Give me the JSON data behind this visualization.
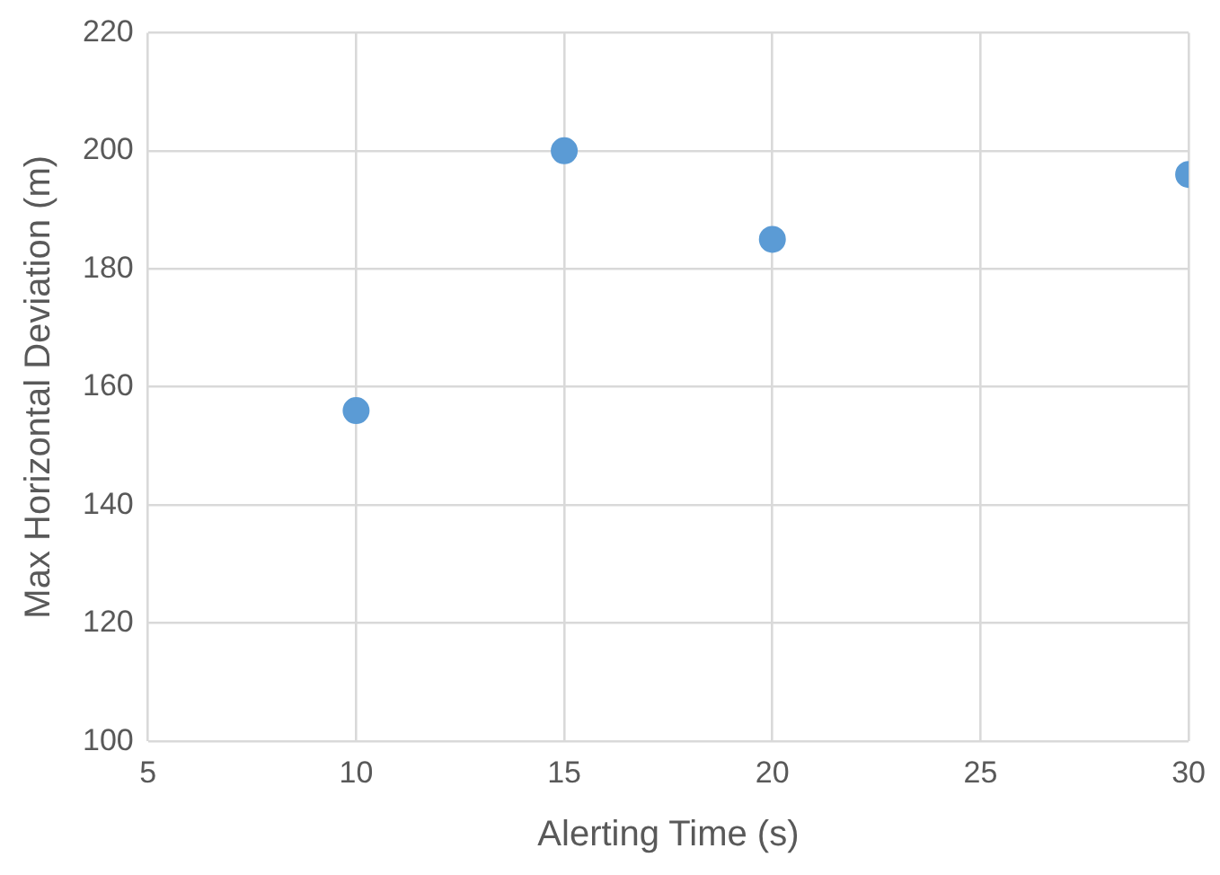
{
  "chart_data": {
    "type": "scatter",
    "xlabel": "Alerting Time (s)",
    "ylabel": "Max Horizontal Deviation (m)",
    "x": [
      10,
      15,
      20,
      30
    ],
    "values": [
      156,
      200,
      185,
      196
    ],
    "color": "#5b9bd5",
    "xlim": [
      5,
      30
    ],
    "xticks": [
      5,
      10,
      15,
      20,
      25,
      30
    ],
    "ylim": [
      100,
      220
    ],
    "yticks": [
      100,
      120,
      140,
      160,
      180,
      200,
      220
    ],
    "grid": true,
    "legend": false,
    "marker": "circle"
  }
}
